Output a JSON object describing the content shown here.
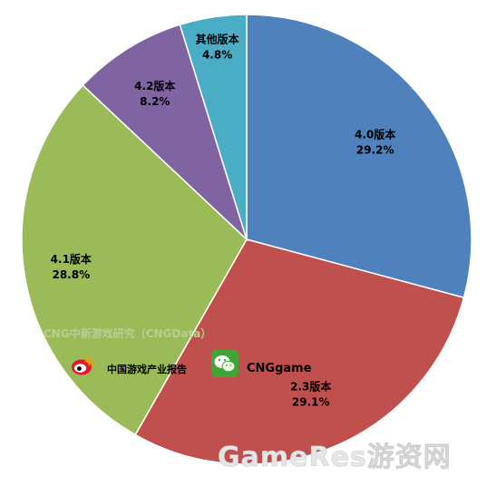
{
  "chart_data": {
    "type": "pie",
    "slices": [
      {
        "label": "4.0版本",
        "value": 29.2,
        "value_text": "29.2%",
        "color": "#4f81bd"
      },
      {
        "label": "2.3版本",
        "value": 29.1,
        "value_text": "29.1%",
        "color": "#c0504d"
      },
      {
        "label": "4.1版本",
        "value": 28.8,
        "value_text": "28.8%",
        "color": "#9bbb59"
      },
      {
        "label": "4.2版本",
        "value": 8.2,
        "value_text": "8.2%",
        "color": "#8064a2"
      },
      {
        "label": "其他版本",
        "value": 4.8,
        "value_text": "4.8%",
        "color": "#4bacc6"
      }
    ],
    "start_angle": "12 o'clock",
    "direction": "clockwise",
    "legend": "none"
  },
  "watermarks": {
    "cng_source": "CNG中新游戏研究（CNGData）",
    "weibo_text": "中国游戏产业报告",
    "wechat_text": "CNGgame",
    "site_mark": "GameRes游资网",
    "weibo_icon": "weibo-icon",
    "wechat_icon": "wechat-icon"
  }
}
